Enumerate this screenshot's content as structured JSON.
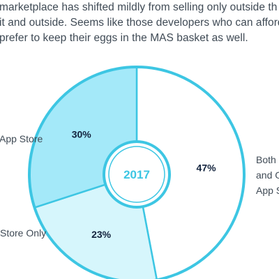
{
  "paragraph": {
    "lines": [
      "marketplace has shifted mildly from selling only outside th",
      "it and outside. Seems like those developers who can afford",
      "prefer to keep their eggs in the MAS basket as well."
    ]
  },
  "legend_labels": {
    "left_top": "App Store",
    "left_bottom": "Store Only",
    "right": [
      "Both",
      "and O",
      "App S"
    ]
  },
  "chart_data": {
    "type": "pie",
    "center_label": "2017",
    "slices": [
      {
        "label_text": "47%",
        "value": 47,
        "color": "#ffffff"
      },
      {
        "label_text": "23%",
        "value": 23,
        "color": "#d6f6fc"
      },
      {
        "label_text": "30%",
        "value": 30,
        "color": "#a4e9f9"
      }
    ],
    "colors": {
      "ring": "#3dc6e3",
      "center_text": "#3dc6e3",
      "value_text": "#12233d"
    }
  }
}
